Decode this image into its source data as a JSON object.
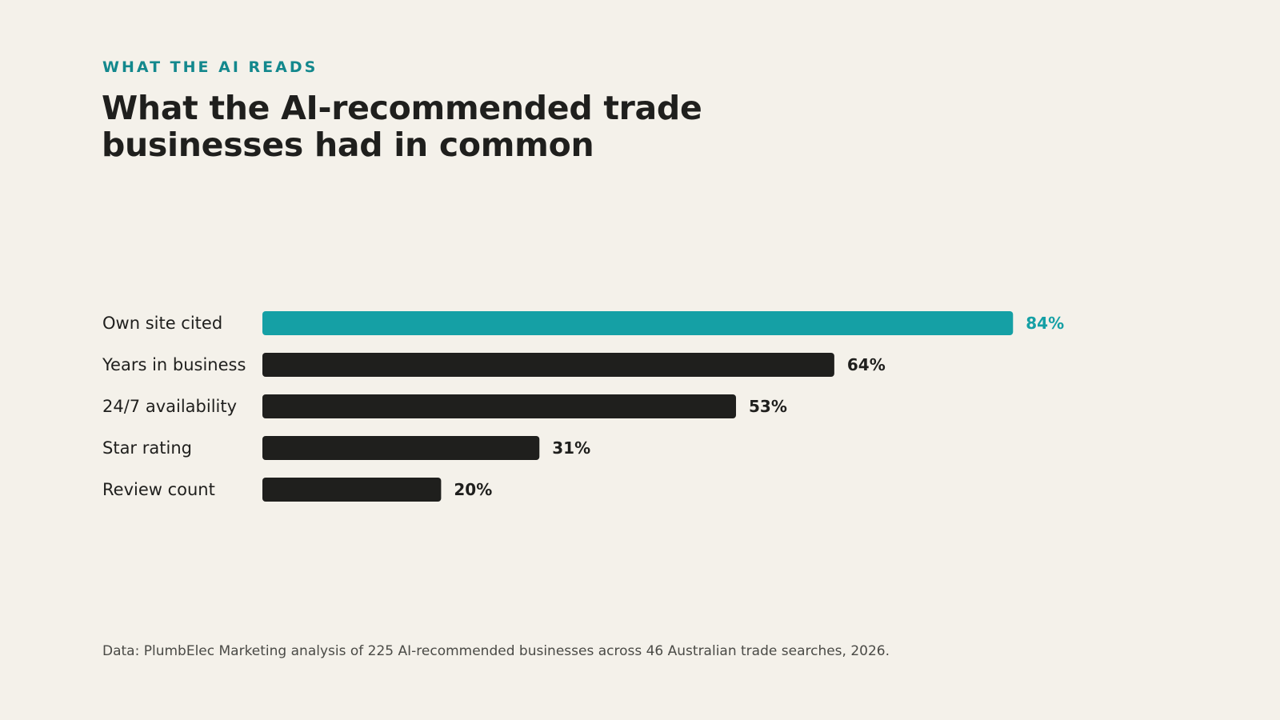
{
  "eyebrow": "WHAT THE AI READS",
  "title": "What the AI-recommended trade businesses had in common",
  "source": "Data: PlumbElec Marketing analysis of 225 AI-recommended businesses across 46 Australian trade searches, 2026.",
  "colors": {
    "background": "#f4f1ea",
    "accent": "#15a0a5",
    "bar": "#1f1f1d",
    "text": "#1f1f1d",
    "eyebrow": "#13888d"
  },
  "chart_data": {
    "type": "bar",
    "orientation": "horizontal",
    "categories": [
      "Own site cited",
      "Years in business",
      "24/7 availability",
      "Star rating",
      "Review count"
    ],
    "values": [
      84,
      64,
      53,
      31,
      20
    ],
    "value_labels": [
      "84%",
      "64%",
      "53%",
      "31%",
      "20%"
    ],
    "highlight_index": 0,
    "xlim": [
      0,
      100
    ],
    "grid": false,
    "legend": "none"
  }
}
